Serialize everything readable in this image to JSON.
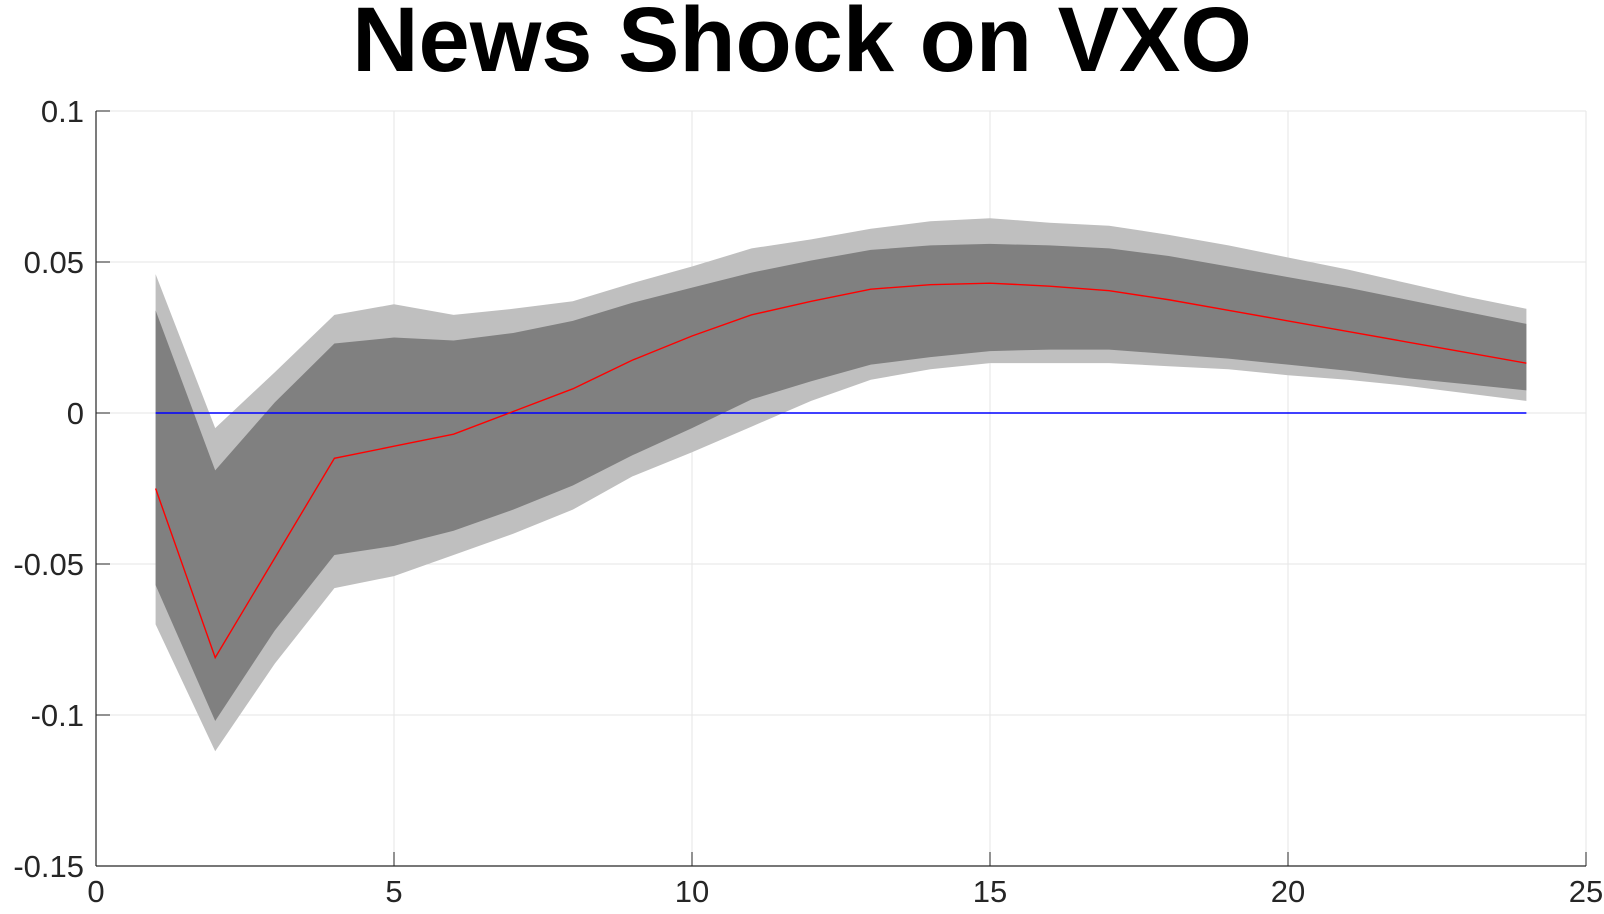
{
  "chart_data": {
    "type": "line",
    "title": "News Shock on VXO",
    "xlabel": "",
    "ylabel": "",
    "xlim": [
      0,
      25
    ],
    "ylim": [
      -0.15,
      0.1
    ],
    "xticks": [
      0,
      5,
      10,
      15,
      20,
      25
    ],
    "xtick_labels": [
      "0",
      "5",
      "10",
      "15",
      "20",
      "25"
    ],
    "yticks": [
      -0.15,
      -0.1,
      -0.05,
      0,
      0.05,
      0.1
    ],
    "ytick_labels": [
      "-0.15",
      "-0.1",
      "-0.05",
      "0",
      "0.05",
      "0.1"
    ],
    "grid": true,
    "x": [
      1,
      2,
      3,
      4,
      5,
      6,
      7,
      8,
      9,
      10,
      11,
      12,
      13,
      14,
      15,
      16,
      17,
      18,
      19,
      20,
      21,
      22,
      23,
      24
    ],
    "series": [
      {
        "role": "response",
        "color": "#ff0000",
        "values": [
          -0.025,
          -0.081,
          -0.048,
          -0.015,
          -0.011,
          -0.007,
          0.0005,
          0.008,
          0.0175,
          0.0255,
          0.0325,
          0.037,
          0.041,
          0.0425,
          0.043,
          0.042,
          0.0405,
          0.0375,
          0.034,
          0.0305,
          0.027,
          0.0235,
          0.02,
          0.0165
        ]
      },
      {
        "role": "zero-line",
        "color": "#0000ff",
        "values": [
          0,
          0,
          0,
          0,
          0,
          0,
          0,
          0,
          0,
          0,
          0,
          0,
          0,
          0,
          0,
          0,
          0,
          0,
          0,
          0,
          0,
          0,
          0,
          0
        ]
      }
    ],
    "bands": [
      {
        "role": "outer",
        "color": "#bfbfbf",
        "upper": [
          0.046,
          -0.005,
          0.0135,
          0.0325,
          0.036,
          0.0325,
          0.0345,
          0.037,
          0.043,
          0.0485,
          0.0545,
          0.0575,
          0.061,
          0.0635,
          0.0645,
          0.063,
          0.062,
          0.059,
          0.0555,
          0.0515,
          0.0475,
          0.043,
          0.0385,
          0.0345
        ],
        "lower": [
          -0.07,
          -0.112,
          -0.083,
          -0.058,
          -0.054,
          -0.047,
          -0.04,
          -0.032,
          -0.021,
          -0.013,
          -0.0045,
          0.004,
          0.011,
          0.0145,
          0.0165,
          0.0165,
          0.0165,
          0.0155,
          0.0145,
          0.0125,
          0.011,
          0.009,
          0.0065,
          0.004
        ]
      },
      {
        "role": "inner",
        "color": "#808080",
        "upper": [
          0.034,
          -0.019,
          0.0035,
          0.023,
          0.025,
          0.024,
          0.0265,
          0.0305,
          0.0365,
          0.0415,
          0.0465,
          0.0505,
          0.054,
          0.0555,
          0.056,
          0.0555,
          0.0545,
          0.052,
          0.0485,
          0.045,
          0.0415,
          0.0375,
          0.0335,
          0.0295
        ],
        "lower": [
          -0.057,
          -0.102,
          -0.072,
          -0.047,
          -0.044,
          -0.039,
          -0.032,
          -0.024,
          -0.014,
          -0.005,
          0.0045,
          0.0105,
          0.016,
          0.0185,
          0.0205,
          0.021,
          0.021,
          0.0195,
          0.018,
          0.016,
          0.014,
          0.0115,
          0.0095,
          0.0075
        ]
      }
    ]
  }
}
